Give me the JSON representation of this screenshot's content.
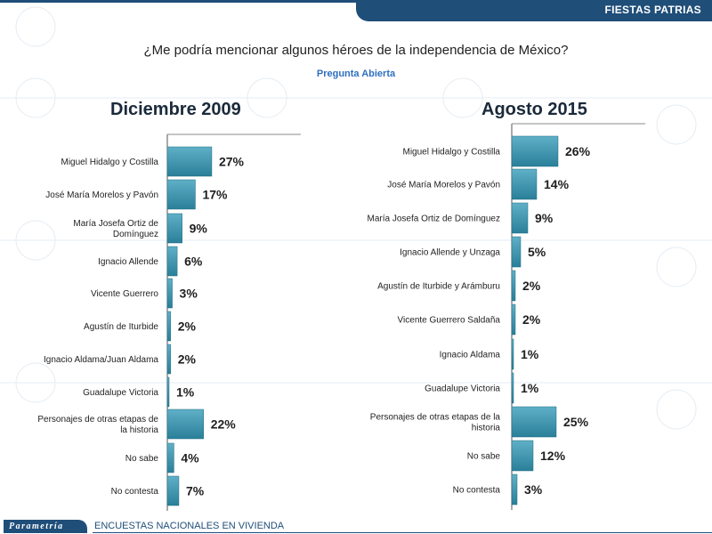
{
  "header": {
    "title": "FIESTAS PATRIAS"
  },
  "question": {
    "text": "¿Me podría mencionar algunos héroes de la independencia de México?",
    "subtitle": "Pregunta Abierta"
  },
  "footer": {
    "logo": "Parametría",
    "text": "ENCUESTAS NACIONALES EN VIVIENDA"
  },
  "colors": {
    "bar": "#2a7f99",
    "bar_light": "#5fb0c7",
    "header": "#1f4e79",
    "subtitle": "#2e6fbf"
  },
  "chart_data": [
    {
      "type": "bar",
      "orientation": "horizontal",
      "title": "Diciembre 2009",
      "categories": [
        [
          "Miguel Hidalgo y Costilla"
        ],
        [
          "José María Morelos y Pavón"
        ],
        [
          "María Josefa Ortiz de",
          "Domínguez"
        ],
        [
          "Ignacio Allende"
        ],
        [
          "Vicente Guerrero"
        ],
        [
          "Agustín de Iturbide"
        ],
        [
          "Ignacio Aldama/Juan Aldama"
        ],
        [
          "Guadalupe Victoria"
        ],
        [
          "Personajes de otras etapas de",
          "la historia"
        ],
        [
          "No sabe"
        ],
        [
          "No contesta"
        ]
      ],
      "values": [
        27,
        17,
        9,
        6,
        3,
        2,
        2,
        1,
        22,
        4,
        7
      ],
      "value_labels": [
        "27%",
        "17%",
        "9%",
        "6%",
        "3%",
        "2%",
        "2%",
        "1%",
        "22%",
        "4%",
        "7%"
      ],
      "xlim": [
        0,
        30
      ]
    },
    {
      "type": "bar",
      "orientation": "horizontal",
      "title": "Agosto 2015",
      "categories": [
        [
          "Miguel Hidalgo y Costilla"
        ],
        [
          "José María Morelos y Pavón"
        ],
        [
          "María Josefa Ortiz de Domínguez"
        ],
        [
          "Ignacio Allende y Unzaga"
        ],
        [
          "Agustín de Iturbide y Arámburu"
        ],
        [
          "Vicente Guerrero Saldaña"
        ],
        [
          "Ignacio Aldama"
        ],
        [
          "Guadalupe Victoria"
        ],
        [
          "Personajes de otras etapas de la",
          "historia"
        ],
        [
          "No sabe"
        ],
        [
          "No contesta"
        ]
      ],
      "values": [
        26,
        14,
        9,
        5,
        2,
        2,
        1,
        1,
        25,
        12,
        3
      ],
      "value_labels": [
        "26%",
        "14%",
        "9%",
        "5%",
        "2%",
        "2%",
        "1%",
        "1%",
        "25%",
        "12%",
        "3%"
      ],
      "xlim": [
        0,
        30
      ]
    }
  ]
}
